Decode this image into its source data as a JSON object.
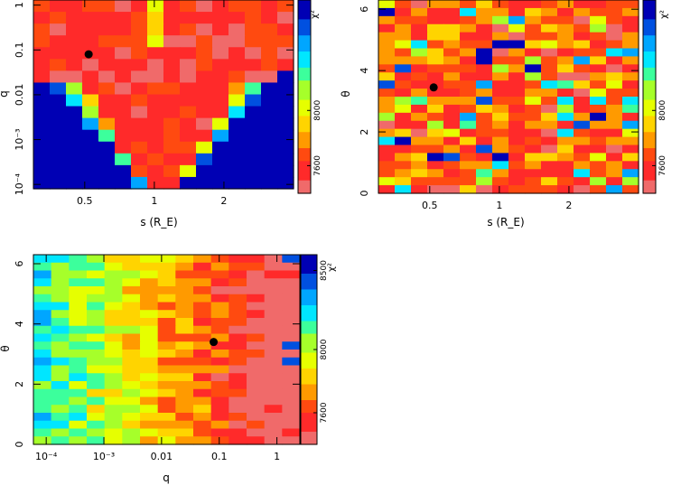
{
  "colors": {
    "scale": [
      "#f06a6a",
      "#ff2a2a",
      "#ff4a10",
      "#ff9a00",
      "#ffd400",
      "#e6ff00",
      "#a6ff2a",
      "#3cff9c",
      "#00e6ff",
      "#00a6ff",
      "#0050e0",
      "#0000b4"
    ],
    "marker": "#000000"
  },
  "chart_data": [
    {
      "type": "heatmap",
      "title": "",
      "xlabel": "s (R_E)",
      "ylabel": "q",
      "x_scale": "log",
      "y_scale": "log",
      "xlim": [
        0.3,
        4.0
      ],
      "ylim": [
        8e-05,
        1.3
      ],
      "x_ticks": [
        {
          "value": 0.5,
          "label": "0.5"
        },
        {
          "value": 1,
          "label": "1"
        },
        {
          "value": 2,
          "label": "2"
        }
      ],
      "y_ticks": [
        {
          "value": 0.0001,
          "label": "10⁻⁴"
        },
        {
          "value": 0.001,
          "label": "10⁻³"
        },
        {
          "value": 0.01,
          "label": "0.01"
        },
        {
          "value": 0.1,
          "label": "0.1"
        },
        {
          "value": 1,
          "label": "1"
        }
      ],
      "colorbar": {
        "label": "χ²",
        "range": [
          7400,
          8800
        ],
        "ticks": [
          {
            "value": 7600,
            "label": "7600"
          },
          {
            "value": 8000,
            "label": "8000"
          }
        ]
      },
      "best_fit": {
        "x": 0.52,
        "y": 0.08
      },
      "grid": false
    },
    {
      "type": "heatmap",
      "title": "",
      "xlabel": "s (R_E)",
      "ylabel": "θ",
      "x_scale": "log",
      "y_scale": "linear",
      "xlim": [
        0.3,
        4.0
      ],
      "ylim": [
        0,
        6.3
      ],
      "x_ticks": [
        {
          "value": 0.5,
          "label": "0.5"
        },
        {
          "value": 1,
          "label": "1"
        },
        {
          "value": 2,
          "label": "2"
        }
      ],
      "y_ticks": [
        {
          "value": 0,
          "label": "0"
        },
        {
          "value": 2,
          "label": "2"
        },
        {
          "value": 4,
          "label": "4"
        },
        {
          "value": 6,
          "label": "6"
        }
      ],
      "colorbar": {
        "label": "χ²",
        "range": [
          7400,
          8800
        ],
        "ticks": [
          {
            "value": 7600,
            "label": "7600"
          },
          {
            "value": 8000,
            "label": "8000"
          }
        ]
      },
      "best_fit": {
        "x": 0.52,
        "y": 3.45
      },
      "grid": false
    },
    {
      "type": "heatmap",
      "title": "",
      "xlabel": "q",
      "ylabel": "θ",
      "x_scale": "log",
      "y_scale": "linear",
      "xlim": [
        6e-05,
        2.5
      ],
      "ylim": [
        0,
        6.3
      ],
      "x_ticks": [
        {
          "value": 0.0001,
          "label": "10⁻⁴"
        },
        {
          "value": 0.001,
          "label": "10⁻³"
        },
        {
          "value": 0.01,
          "label": "0.01"
        },
        {
          "value": 0.1,
          "label": "0.1"
        },
        {
          "value": 1,
          "label": "1"
        }
      ],
      "y_ticks": [
        {
          "value": 0,
          "label": "0"
        },
        {
          "value": 2,
          "label": "2"
        },
        {
          "value": 4,
          "label": "4"
        },
        {
          "value": 6,
          "label": "6"
        }
      ],
      "colorbar": {
        "label": "χ²",
        "range": [
          7400,
          8600
        ],
        "ticks": [
          {
            "value": 7600,
            "label": "7600"
          },
          {
            "value": 8000,
            "label": "8000"
          },
          {
            "value": 8500,
            "label": "8500"
          }
        ]
      },
      "best_fit": {
        "x": 0.08,
        "y": 3.4
      },
      "grid": false
    }
  ]
}
